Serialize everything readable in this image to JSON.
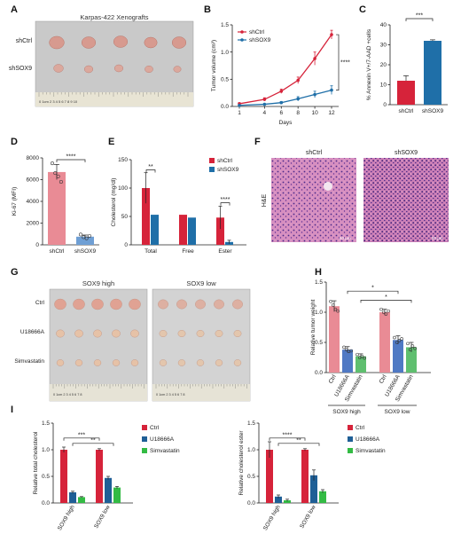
{
  "colors": {
    "shctrl": "#d6233a",
    "shsox9": "#1f6fa8",
    "shctrl_light": "#e98b95",
    "shsox9_light": "#6f9fd4",
    "ctrl": "#d6233a",
    "u18666a": "#1f5f96",
    "simvastatin": "#33bb44",
    "ctrl_light": "#e98b95",
    "u18666a_light": "#4f79c4",
    "simvastatin_light": "#5fbf6f"
  },
  "panel_letters": {
    "a": "A",
    "b": "B",
    "c": "C",
    "d": "D",
    "e": "E",
    "f": "F",
    "g": "G",
    "h": "H",
    "i": "I"
  },
  "photo_a": {
    "title": "Karpas-422 Xenografts",
    "row1": "shCtrl",
    "row2": "shSOX9",
    "ruler": "0   1cm   2   3   4   5   6   7   8   9   10"
  },
  "photo_f": {
    "side_label": "H&E",
    "left_title": "shCtrl",
    "right_title": "shSOX9",
    "scale_left": "50 μm",
    "scale_right": "50 μm"
  },
  "photo_g": {
    "title_left": "SOX9 high",
    "title_right": "SOX9 low",
    "rows": [
      "Ctrl",
      "U18666A",
      "Simvastatin"
    ],
    "ruler_left": "0   1cm   2   3   4   5   6   7   8",
    "ruler_right": "0   1cm   2   3   4   5   6   7   8"
  },
  "chart_data": [
    {
      "id": "B",
      "type": "line",
      "xlabel": "Days",
      "ylabel": "Tumor volume (cm³)",
      "x": [
        1,
        4,
        6,
        8,
        10,
        12
      ],
      "ylim": [
        0,
        1.5
      ],
      "yticks": [
        "0.0",
        "0.5",
        "1.0",
        "1.5"
      ],
      "xticks": [
        "1",
        "4",
        "6",
        "8",
        "10",
        "12"
      ],
      "series": [
        {
          "name": "shCtrl",
          "values": [
            0.05,
            0.13,
            0.28,
            0.48,
            0.88,
            1.32
          ],
          "errors": [
            0.02,
            0.03,
            0.04,
            0.06,
            0.12,
            0.08
          ]
        },
        {
          "name": "shSOX9",
          "values": [
            0.02,
            0.04,
            0.07,
            0.14,
            0.22,
            0.3
          ],
          "errors": [
            0.01,
            0.01,
            0.02,
            0.04,
            0.06,
            0.08
          ]
        }
      ],
      "annotation": "****"
    },
    {
      "id": "C",
      "type": "bar",
      "ylabel": "% Annexin V+/7-AAD +cells",
      "categories": [
        "shCtrl",
        "shSOX9"
      ],
      "values": [
        12,
        32
      ],
      "errors": [
        2.5,
        0.5
      ],
      "ylim": [
        0,
        40
      ],
      "yticks": [
        "0",
        "10",
        "20",
        "30",
        "40"
      ],
      "annotation": "***"
    },
    {
      "id": "D",
      "type": "bar",
      "ylabel": "Ki-67 (MFI)",
      "categories": [
        "shCtrl",
        "shSOX9"
      ],
      "values": [
        6700,
        750
      ],
      "errors": [
        700,
        150
      ],
      "points": [
        [
          7500,
          6600,
          6300,
          5800
        ],
        [
          950,
          700,
          600,
          820
        ]
      ],
      "ylim": [
        0,
        8000
      ],
      "yticks": [
        "0",
        "2000",
        "4000",
        "6000",
        "8000"
      ],
      "annotation": "****"
    },
    {
      "id": "E",
      "type": "bar",
      "ylabel": "Cholesterol (mg/dl)",
      "categories": [
        "Total",
        "Free",
        "Ester"
      ],
      "series": [
        {
          "name": "shCtrl",
          "values": [
            100,
            53,
            48
          ],
          "errors": [
            27,
            0,
            20
          ]
        },
        {
          "name": "shSOX9",
          "values": [
            53,
            48,
            5
          ],
          "errors": [
            0,
            0,
            3
          ]
        }
      ],
      "ylim": [
        0,
        150
      ],
      "yticks": [
        "0",
        "50",
        "100",
        "150"
      ],
      "annotations": [
        "**",
        "****"
      ]
    },
    {
      "id": "H",
      "type": "bar",
      "ylabel": "Relative tumor weight",
      "categories": [
        "Ctrl",
        "U18666A",
        "Simvastatin",
        "Ctrl",
        "U18666A",
        "Simvastatin"
      ],
      "groups": [
        "SOX9 high",
        "SOX9 low"
      ],
      "values": [
        1.1,
        0.38,
        0.27,
        1.0,
        0.54,
        0.42
      ],
      "errors": [
        0.09,
        0.05,
        0.04,
        0.05,
        0.07,
        0.08
      ],
      "ylim": [
        0,
        1.5
      ],
      "yticks": [
        "0.0",
        "0.5",
        "1.0",
        "1.5"
      ],
      "annotations": [
        "*",
        "*"
      ]
    },
    {
      "id": "I1",
      "type": "bar",
      "ylabel": "Relative total cholesterol",
      "groups": [
        "SOX9 high",
        "SOX9 low"
      ],
      "series": [
        {
          "name": "Ctrl",
          "values": [
            1.0,
            1.0
          ],
          "errors": [
            0.05,
            0.02
          ]
        },
        {
          "name": "U18666A",
          "values": [
            0.2,
            0.47
          ],
          "errors": [
            0.02,
            0.03
          ]
        },
        {
          "name": "Simvastatin",
          "values": [
            0.11,
            0.29
          ],
          "errors": [
            0.01,
            0.02
          ]
        }
      ],
      "ylim": [
        0,
        1.5
      ],
      "yticks": [
        "0.0",
        "0.5",
        "1.0",
        "1.5"
      ],
      "annotations": [
        "***",
        "**"
      ]
    },
    {
      "id": "I2",
      "type": "bar",
      "ylabel": "Relative cholesterol ester",
      "groups": [
        "SOX9 high",
        "SOX9 low"
      ],
      "series": [
        {
          "name": "Ctrl",
          "values": [
            1.0,
            1.0
          ],
          "errors": [
            0.15,
            0.02
          ]
        },
        {
          "name": "U18666A",
          "values": [
            0.12,
            0.52
          ],
          "errors": [
            0.03,
            0.1
          ]
        },
        {
          "name": "Simvastatin",
          "values": [
            0.05,
            0.22
          ],
          "errors": [
            0.02,
            0.03
          ]
        }
      ],
      "ylim": [
        0,
        1.5
      ],
      "yticks": [
        "0.0",
        "0.5",
        "1.0",
        "1.5"
      ],
      "annotations": [
        "****",
        "**"
      ]
    }
  ]
}
